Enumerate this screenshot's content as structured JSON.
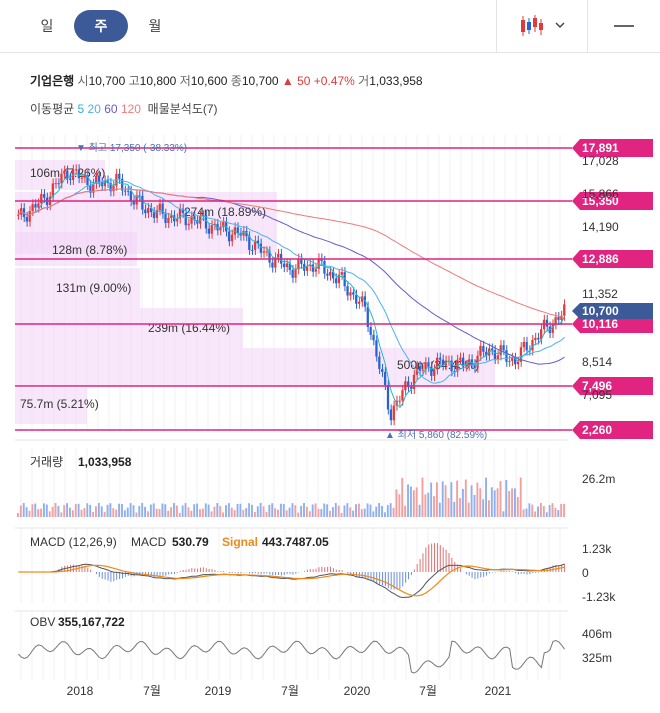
{
  "period_tabs": [
    "일",
    "주",
    "월"
  ],
  "active_tab": "주",
  "stock": {
    "name": "기업은행",
    "open_label": "시",
    "open": "10,700",
    "high_label": "고",
    "high": "10,800",
    "low_label": "저",
    "low": "10,600",
    "close_label": "종",
    "close": "10,700",
    "change": "▲ 50 +0.47%",
    "volume_label": "거",
    "volume": "1,033,958"
  },
  "ma": {
    "label": "이동평균",
    "periods": [
      "5",
      "20",
      "60",
      "120"
    ],
    "colors": [
      "#29b6c8",
      "#4fb0f0",
      "#6a5acd",
      "#f07a7a"
    ],
    "extra": "매물분석도(7)"
  },
  "colors": {
    "up": "#e03a3a",
    "down": "#2a62d4",
    "level": "#e0247f",
    "current": "#3d5a98",
    "profile": "#f2d4f5"
  },
  "price_chart": {
    "high_annotation": "▼ 최고 17,350 (-38.33%)",
    "low_annotation": "▲ 최저 5,860 (82.59%)",
    "axis_ticks": [
      "17,028",
      "15,866",
      "14,190",
      "11,352",
      "8,514",
      "7,095"
    ],
    "level_lines": [
      "17,891",
      "15,350",
      "12,886",
      "10,116",
      "7,496",
      "2,260"
    ],
    "current_price": "10,700",
    "volume_profile": [
      {
        "label": "106m (7.26%)"
      },
      {
        "label": "274m (18.89%)"
      },
      {
        "label": "128m (8.78%)"
      },
      {
        "label": "131m (9.00%)"
      },
      {
        "label": "239m (16.44%)"
      },
      {
        "label": "500m (34.43%)"
      },
      {
        "label": "75.7m (5.21%)"
      }
    ]
  },
  "volume_panel": {
    "label": "거래량",
    "value": "1,033,958",
    "tick": "26.2m"
  },
  "macd_panel": {
    "label": "MACD (12,26,9)",
    "macd_label": "MACD",
    "macd_value": "530.79",
    "signal_label": "Signal",
    "signal_value": "443.7487.05",
    "ticks": [
      "1.23k",
      "0",
      "-1.23k"
    ],
    "macd_color": "#555555",
    "signal_color": "#ef8a1a"
  },
  "obv_panel": {
    "label": "OBV",
    "value": "355,167,722",
    "ticks": [
      "406m",
      "325m"
    ]
  },
  "x_axis": [
    "2018",
    "7월",
    "2019",
    "7월",
    "2020",
    "7월",
    "2021"
  ],
  "chart_data": {
    "type": "candlestick",
    "series": [
      {
        "name": "Price",
        "x": [
          "2017-10",
          "2017-12",
          "2018-02",
          "2018-04",
          "2018-06",
          "2018-08",
          "2018-10",
          "2018-12",
          "2019-02",
          "2019-04",
          "2019-06",
          "2019-08",
          "2019-10",
          "2019-12",
          "2020-02",
          "2020-03",
          "2020-05",
          "2020-07",
          "2020-09",
          "2020-11",
          "2021-01",
          "2021-03",
          "2021-05"
        ],
        "values": [
          14800,
          15600,
          16900,
          16300,
          16400,
          15300,
          14900,
          14800,
          14400,
          14100,
          13200,
          12600,
          12800,
          12100,
          10800,
          6300,
          8100,
          8500,
          8400,
          9100,
          8600,
          9800,
          10700
        ]
      }
    ],
    "ylabel": "",
    "xlabel": "",
    "ylim": [
      5500,
      18300
    ]
  }
}
